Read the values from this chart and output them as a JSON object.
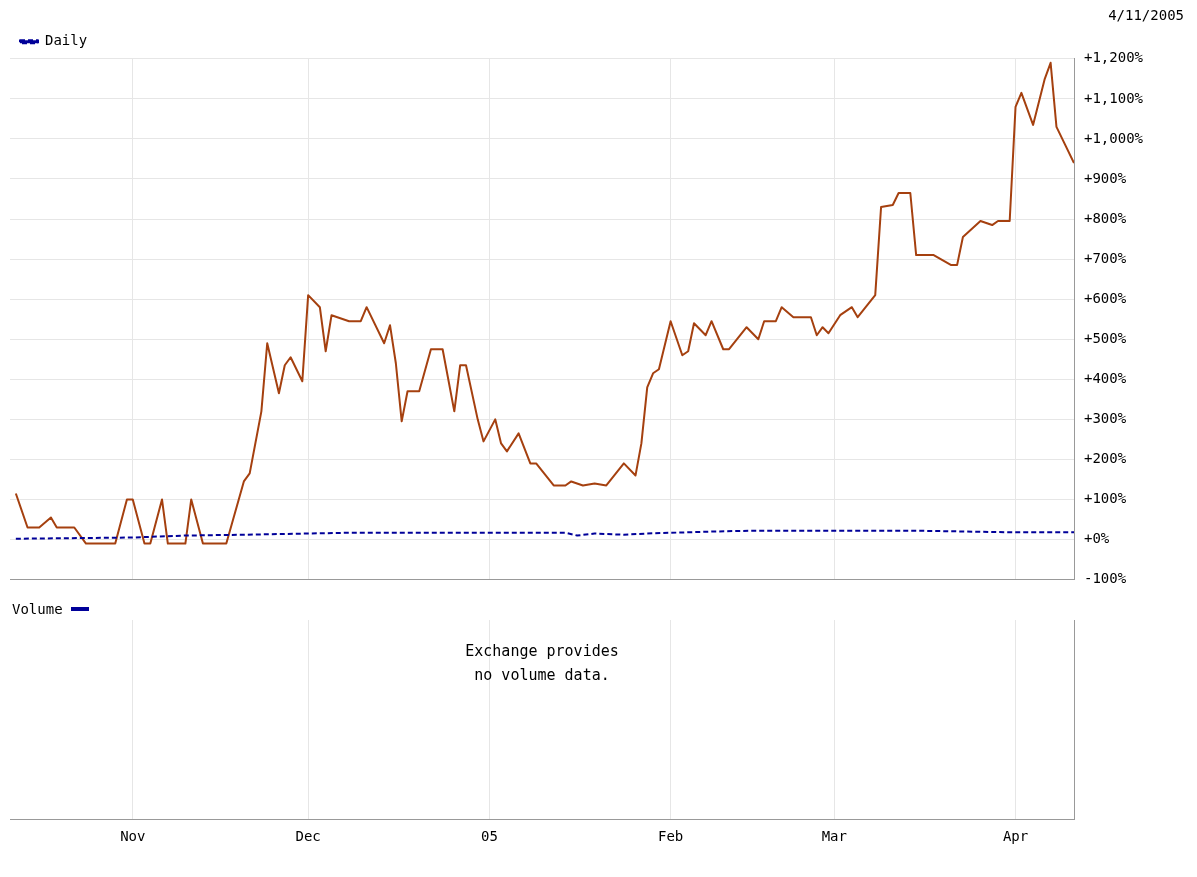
{
  "chart_data": [
    {
      "type": "line",
      "subtitle": "4/11/2005",
      "legend": "top left",
      "grid": true,
      "marker": "none",
      "tick_labels": "y",
      "xlim": [
        "2004-10-11",
        "2005-04-11"
      ],
      "xticks": [
        {
          "value": "2004-11-01",
          "label": "Nov"
        },
        {
          "value": "2004-12-01",
          "label": "Dec"
        },
        {
          "value": "2005-01-01",
          "label": "05"
        },
        {
          "value": "2005-02-01",
          "label": "Feb"
        },
        {
          "value": "2005-03-01",
          "label": "Mar"
        },
        {
          "value": "2005-04-01",
          "label": "Apr"
        }
      ],
      "ylim": [
        -100,
        1200
      ],
      "yticks": [
        {
          "value": -100,
          "label": "-100%"
        },
        {
          "value": 0,
          "label": "+0%"
        },
        {
          "value": 100,
          "label": "+100%"
        },
        {
          "value": 200,
          "label": "+200%"
        },
        {
          "value": 300,
          "label": "+300%"
        },
        {
          "value": 400,
          "label": "+400%"
        },
        {
          "value": 500,
          "label": "+500%"
        },
        {
          "value": 600,
          "label": "+600%"
        },
        {
          "value": 700,
          "label": "+700%"
        },
        {
          "value": 800,
          "label": "+800%"
        },
        {
          "value": 900,
          "label": "+900%"
        },
        {
          "value": 1000,
          "label": "+1,000%"
        },
        {
          "value": 1100,
          "label": "+1,100%"
        },
        {
          "value": 1200,
          "label": "+1,200%"
        }
      ],
      "series": [
        {
          "name": "Daily",
          "color": "#000099",
          "line_style": "dashed",
          "x": [
            "2004-10-12",
            "2004-11-01",
            "2004-11-10",
            "2004-11-20",
            "2004-12-08",
            "2005-01-14",
            "2005-01-16",
            "2005-01-19",
            "2005-01-24",
            "2005-01-28",
            "2005-02-08",
            "2005-02-15",
            "2005-03-15",
            "2005-04-01",
            "2005-04-11"
          ],
          "values": [
            2,
            5,
            10,
            12,
            17,
            17,
            10,
            15,
            12,
            15,
            20,
            22,
            22,
            18,
            18
          ]
        },
        {
          "color": "#a5400f",
          "line_style": "solid",
          "x": [
            "2004-10-12",
            "2004-10-14",
            "2004-10-16",
            "2004-10-18",
            "2004-10-19",
            "2004-10-22",
            "2004-10-24",
            "2004-10-29",
            "2004-10-31",
            "2004-11-01",
            "2004-11-03",
            "2004-11-04",
            "2004-11-06",
            "2004-11-07",
            "2004-11-10",
            "2004-11-11",
            "2004-11-13",
            "2004-11-17",
            "2004-11-20",
            "2004-11-21",
            "2004-11-23",
            "2004-11-24",
            "2004-11-26",
            "2004-11-27",
            "2004-11-28",
            "2004-11-30",
            "2004-12-01",
            "2004-12-03",
            "2004-12-04",
            "2004-12-05",
            "2004-12-08",
            "2004-12-10",
            "2004-12-11",
            "2004-12-14",
            "2004-12-15",
            "2004-12-16",
            "2004-12-17",
            "2004-12-18",
            "2004-12-20",
            "2004-12-22",
            "2004-12-24",
            "2004-12-26",
            "2004-12-27",
            "2004-12-28",
            "2004-12-30",
            "2004-12-31",
            "2005-01-02",
            "2005-01-03",
            "2005-01-04",
            "2005-01-06",
            "2005-01-08",
            "2005-01-09",
            "2005-01-12",
            "2005-01-14",
            "2005-01-15",
            "2005-01-17",
            "2005-01-19",
            "2005-01-21",
            "2005-01-24",
            "2005-01-26",
            "2005-01-27",
            "2005-01-28",
            "2005-01-29",
            "2005-01-30",
            "2005-02-01",
            "2005-02-03",
            "2005-02-04",
            "2005-02-05",
            "2005-02-07",
            "2005-02-08",
            "2005-02-10",
            "2005-02-11",
            "2005-02-14",
            "2005-02-16",
            "2005-02-17",
            "2005-02-19",
            "2005-02-20",
            "2005-02-22",
            "2005-02-25",
            "2005-02-26",
            "2005-02-27",
            "2005-02-28",
            "2005-03-02",
            "2005-03-04",
            "2005-03-05",
            "2005-03-08",
            "2005-03-09",
            "2005-03-11",
            "2005-03-12",
            "2005-03-14",
            "2005-03-15",
            "2005-03-18",
            "2005-03-21",
            "2005-03-22",
            "2005-03-23",
            "2005-03-26",
            "2005-03-28",
            "2005-03-29",
            "2005-03-31",
            "2005-04-01",
            "2005-04-02",
            "2005-04-04",
            "2005-04-06",
            "2005-04-07",
            "2005-04-08",
            "2005-04-11"
          ],
          "values": [
            115,
            30,
            30,
            55,
            30,
            30,
            -10,
            -10,
            100,
            100,
            -10,
            -10,
            100,
            -10,
            -10,
            100,
            -10,
            -10,
            145,
            165,
            320,
            490,
            365,
            435,
            455,
            395,
            610,
            580,
            470,
            560,
            545,
            545,
            580,
            490,
            535,
            440,
            295,
            370,
            370,
            475,
            475,
            320,
            435,
            435,
            300,
            245,
            300,
            240,
            220,
            265,
            190,
            190,
            135,
            135,
            145,
            135,
            140,
            135,
            190,
            160,
            240,
            380,
            415,
            425,
            545,
            460,
            470,
            540,
            510,
            545,
            475,
            475,
            530,
            500,
            545,
            545,
            580,
            555,
            555,
            510,
            530,
            515,
            560,
            580,
            555,
            610,
            830,
            835,
            865,
            865,
            710,
            710,
            685,
            685,
            755,
            795,
            785,
            795,
            795,
            1080,
            1115,
            1035,
            1150,
            1190,
            1030,
            940
          ]
        }
      ]
    },
    {
      "type": "other",
      "title": "Volume",
      "annotations": [
        "Exchange provides no volume data."
      ]
    }
  ]
}
